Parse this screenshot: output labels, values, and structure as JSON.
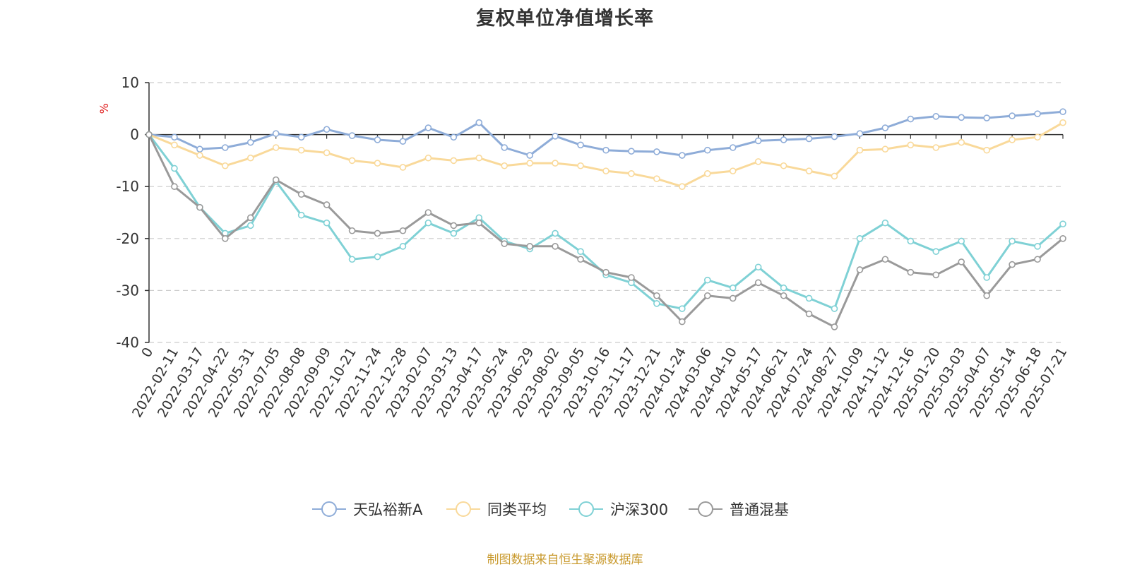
{
  "chart_data": {
    "type": "line",
    "title": "复权单位净值增长率",
    "ylabel": "%",
    "ylim": [
      -40,
      10
    ],
    "yticks": [
      10,
      0,
      -10,
      -20,
      -30,
      -40
    ],
    "grid": true,
    "legend_position": "bottom",
    "x_tick_labels": [
      "0",
      "2022-02-11",
      "2022-03-17",
      "2022-04-22",
      "2022-05-31",
      "2022-07-05",
      "2022-08-08",
      "2022-09-09",
      "2022-10-21",
      "2022-11-24",
      "2022-12-28",
      "2023-02-07",
      "2023-03-13",
      "2023-04-17",
      "2023-05-24",
      "2023-06-29",
      "2023-08-02",
      "2023-09-05",
      "2023-10-16",
      "2023-11-17",
      "2023-12-21",
      "2024-01-24",
      "2024-03-06",
      "2024-04-10",
      "2024-05-17",
      "2024-06-21",
      "2024-07-24",
      "2024-08-27",
      "2024-10-09",
      "2024-11-12",
      "2024-12-16",
      "2025-01-20",
      "2025-03-03",
      "2025-04-07",
      "2025-05-14",
      "2025-06-18",
      "2025-07-21"
    ],
    "series": [
      {
        "name": "天弘裕新A",
        "color": "#8eacd8",
        "values": [
          0,
          -0.5,
          -2.8,
          -2.5,
          -1.5,
          0.2,
          -0.5,
          1,
          -0.2,
          -1,
          -1.3,
          1.3,
          -0.5,
          2.3,
          -2.5,
          -4,
          -0.3,
          -2,
          -3,
          -3.2,
          -3.3,
          -4,
          -3,
          -2.5,
          -1.2,
          -1,
          -0.8,
          -0.4,
          0.2,
          1.3,
          3,
          3.5,
          3.3,
          3.2,
          3.6,
          4,
          4.4
        ]
      },
      {
        "name": "同类平均",
        "color": "#f9d99a",
        "values": [
          0,
          -2,
          -4,
          -6,
          -4.5,
          -2.5,
          -3,
          -3.5,
          -5,
          -5.5,
          -6.3,
          -4.5,
          -5,
          -4.5,
          -6,
          -5.5,
          -5.5,
          -6,
          -7,
          -7.5,
          -8.5,
          -10,
          -7.5,
          -7,
          -5.2,
          -6,
          -7,
          -8,
          -3,
          -2.8,
          -2,
          -2.5,
          -1.5,
          -3,
          -1,
          -0.5,
          2.3
        ]
      },
      {
        "name": "沪深300",
        "color": "#7fd1d5",
        "values": [
          0,
          -6.5,
          -14,
          -19,
          -17.5,
          -9,
          -15.5,
          -17,
          -24,
          -23.5,
          -21.5,
          -17,
          -19,
          -16,
          -20.5,
          -22,
          -19,
          -22.5,
          -27,
          -28.5,
          -32.5,
          -33.5,
          -28,
          -29.5,
          -25.5,
          -29.5,
          -31.5,
          -33.5,
          -20,
          -17,
          -20.5,
          -22.5,
          -20.5,
          -27.5,
          -20.5,
          -21.5,
          -17.2
        ]
      },
      {
        "name": "普通混基",
        "color": "#9a9a9a",
        "values": [
          0,
          -10,
          -14,
          -20,
          -16,
          -8.7,
          -11.5,
          -13.5,
          -18.5,
          -19,
          -18.5,
          -15,
          -17.5,
          -17,
          -21,
          -21.5,
          -21.5,
          -24,
          -26.5,
          -27.5,
          -31,
          -36,
          -31,
          -31.5,
          -28.5,
          -31,
          -34.5,
          -37,
          -26,
          -24,
          -26.5,
          -27,
          -24.5,
          -31,
          -25,
          -24,
          -20
        ]
      }
    ]
  },
  "legend": {
    "items": [
      "天弘裕新A",
      "同类平均",
      "沪深300",
      "普通混基"
    ]
  },
  "source_note": "制图数据来自恒生聚源数据库"
}
